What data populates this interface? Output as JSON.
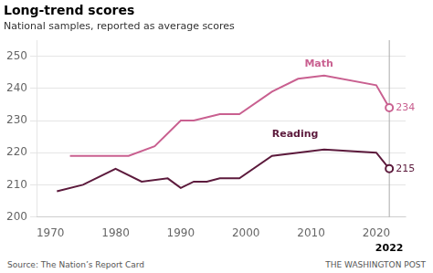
{
  "chart_data": {
    "type": "line",
    "title": "Long-trend scores",
    "subtitle": "National samples, reported as average scores",
    "source": "Source: The Nation’s Report Card",
    "watermark": "THE WASHINGTON POST",
    "series": [
      {
        "name": "Math",
        "color": "#c96090",
        "x": [
          1973,
          1978,
          1982,
          1986,
          1990,
          1992,
          1994,
          1996,
          1999,
          2004,
          2008,
          2012,
          2020,
          2022
        ],
        "values": [
          219,
          219,
          219,
          222,
          230,
          230,
          231,
          232,
          232,
          239,
          243,
          244,
          241,
          234
        ],
        "value_labels": [
          null,
          null,
          null,
          null,
          null,
          null,
          null,
          null,
          null,
          null,
          null,
          null,
          null,
          "234"
        ]
      },
      {
        "name": "Reading",
        "color": "#5c1a3c",
        "x": [
          1971,
          1975,
          1980,
          1984,
          1988,
          1990,
          1992,
          1994,
          1996,
          1999,
          2004,
          2008,
          2012,
          2020,
          2022
        ],
        "values": [
          208,
          210,
          215,
          211,
          212,
          209,
          211,
          211,
          212,
          212,
          219,
          220,
          221,
          220,
          215
        ],
        "value_labels": [
          null,
          null,
          null,
          null,
          null,
          null,
          null,
          null,
          null,
          null,
          null,
          null,
          null,
          null,
          "215"
        ]
      }
    ],
    "annotations": [
      {
        "text": "Math",
        "x": 2009,
        "y": 246,
        "color": "#c96090"
      },
      {
        "text": "Reading",
        "x": 2004,
        "y": 224,
        "color": "#5c1a3c"
      }
    ],
    "reference_x": 2022,
    "xlim": [
      1968,
      2024.5
    ],
    "xticks": [
      1970,
      1980,
      1990,
      2000,
      2010,
      2020
    ],
    "ylim": [
      200,
      255
    ],
    "yticks": [
      200,
      210,
      220,
      230,
      240,
      250
    ],
    "grid": "y"
  }
}
